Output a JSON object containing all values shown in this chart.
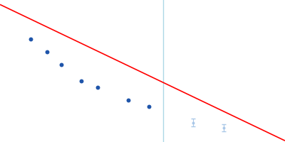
{
  "title": "",
  "background_color": "#ffffff",
  "line_color": "#ff0000",
  "line_width": 1.2,
  "vline_color": "#add8e6",
  "vline_lw": 1.0,
  "solid_points_x": [
    0.001,
    0.0018,
    0.0025,
    0.0035,
    0.0043,
    0.0058,
    0.0068
  ],
  "solid_points_y": [
    4.62,
    4.6,
    4.58,
    4.555,
    4.545,
    4.525,
    4.515
  ],
  "ghost_points_x": [
    0.009,
    0.0105
  ],
  "ghost_points_y": [
    4.49,
    4.482
  ],
  "solid_color": "#1f55aa",
  "ghost_color": "#aac8e8",
  "point_size": 18,
  "ghost_size": 8,
  "vline_x": 0.0075,
  "xlim": [
    -0.0005,
    0.0135
  ],
  "ylim": [
    4.46,
    4.68
  ],
  "line_x0": -0.0005,
  "line_x1": 0.0135,
  "line_y0": 4.673,
  "line_y1": 4.462
}
